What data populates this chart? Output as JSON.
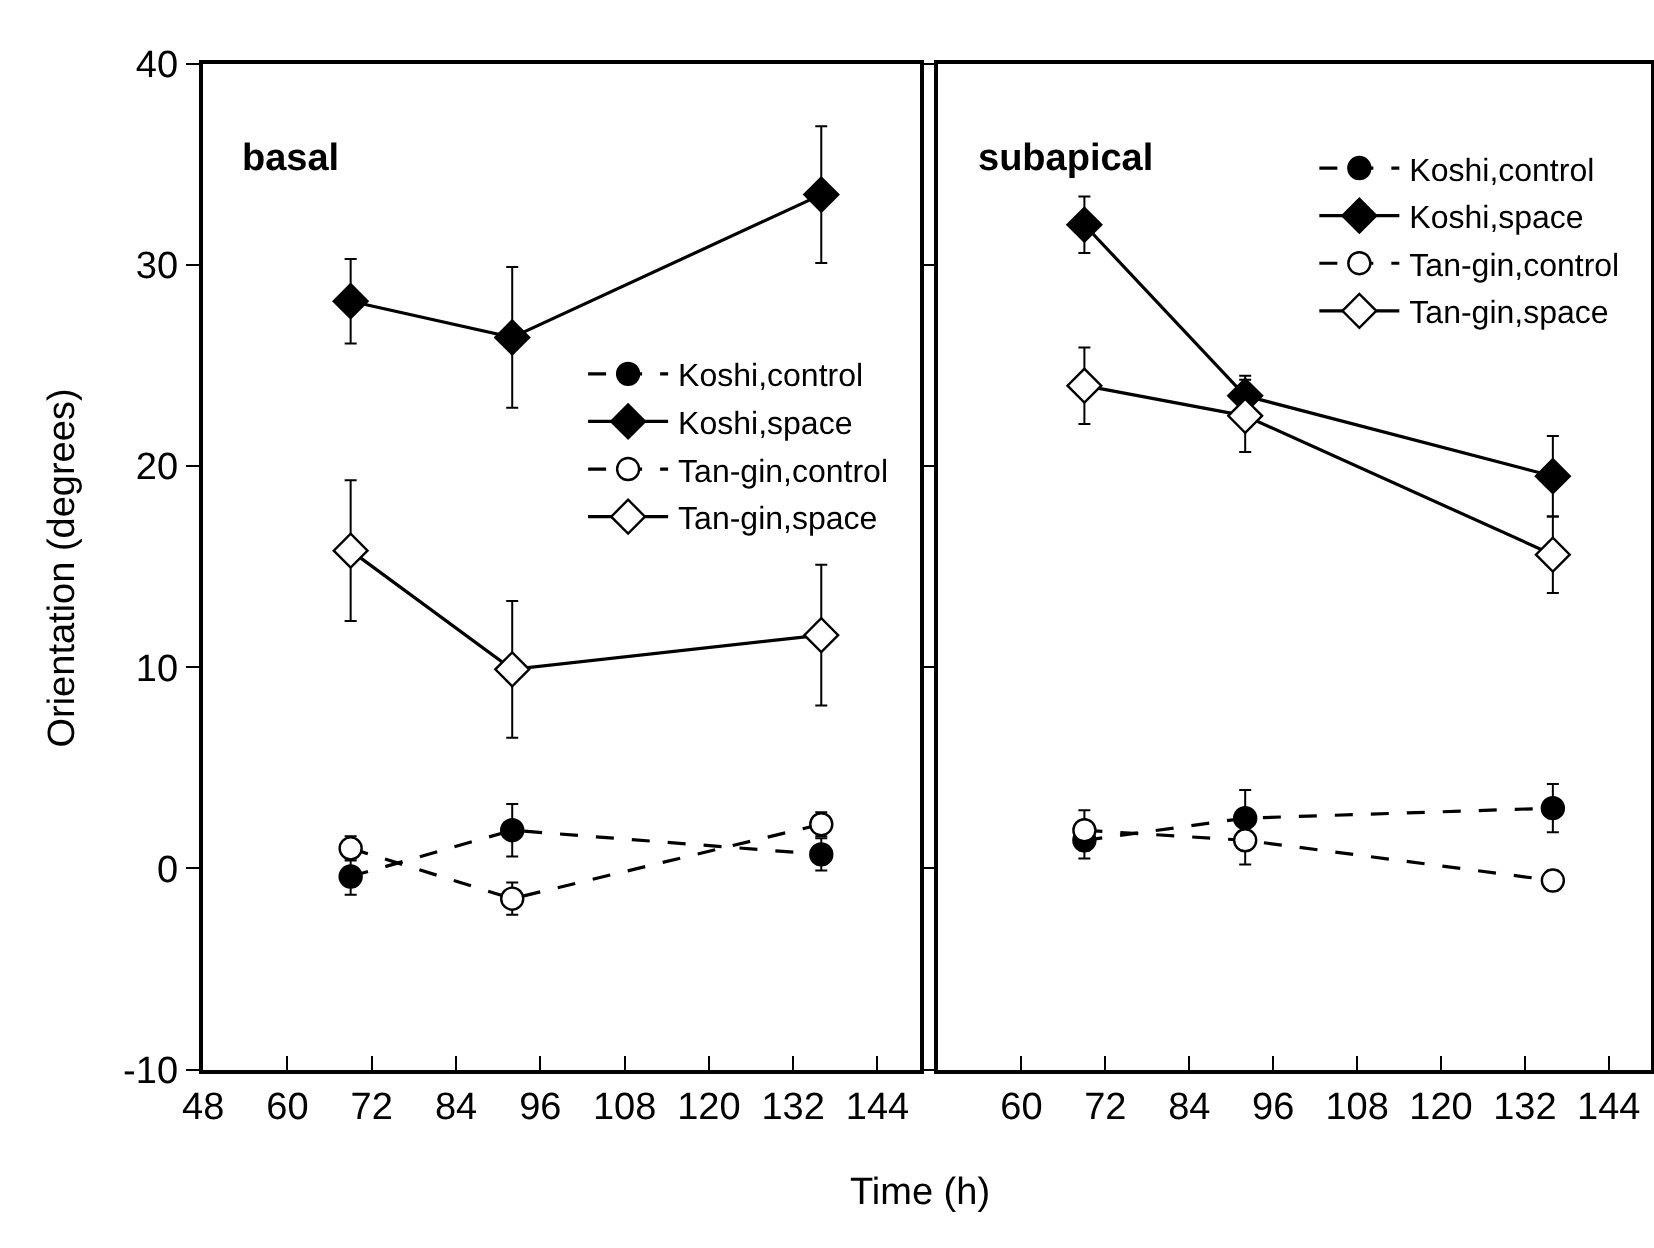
{
  "chart_data": [
    {
      "type": "line",
      "title": "basal",
      "xlabel": "Time (h)",
      "ylabel": "Orientation (degrees)",
      "x": [
        69,
        92,
        136
      ],
      "xlim": [
        48,
        150
      ],
      "xticks": [
        48,
        60,
        72,
        84,
        96,
        108,
        120,
        132,
        144
      ],
      "ylim": [
        -10,
        40
      ],
      "yticks": [
        -10,
        0,
        10,
        20,
        30,
        40
      ],
      "legend": "right",
      "series": [
        {
          "name": "Koshi,control",
          "color": "#000000",
          "marker": "circle",
          "line_style": "dashed",
          "values": [
            -0.4,
            1.9,
            0.7
          ],
          "errors": [
            0.9,
            1.3,
            0.8
          ]
        },
        {
          "name": "Koshi,space",
          "color": "#000000",
          "marker": "diamond",
          "line_style": "solid",
          "values": [
            28.2,
            26.4,
            33.5
          ],
          "errors": [
            2.1,
            3.5,
            3.4
          ]
        },
        {
          "name": "Tan-gin,control",
          "color": "#ffffff",
          "marker": "circle",
          "line_style": "dashed",
          "values": [
            1.0,
            -1.5,
            2.2
          ],
          "errors": [
            0.6,
            0.8,
            0.6
          ]
        },
        {
          "name": "Tan-gin,space",
          "color": "#ffffff",
          "marker": "diamond",
          "line_style": "solid",
          "values": [
            15.8,
            9.9,
            11.6
          ],
          "errors": [
            3.5,
            3.4,
            3.5
          ]
        }
      ]
    },
    {
      "type": "line",
      "title": "subapical",
      "x": [
        69,
        92,
        136
      ],
      "xlim": [
        48,
        150
      ],
      "xticks": [
        60,
        72,
        84,
        96,
        108,
        120,
        132,
        144
      ],
      "ylim": [
        -10,
        40
      ],
      "yticks": [
        -10,
        0,
        10,
        20,
        30,
        40
      ],
      "tick_labels": "x",
      "legend": "top right",
      "series": [
        {
          "name": "Koshi,control",
          "color": "#000000",
          "marker": "circle",
          "line_style": "dashed",
          "values": [
            1.4,
            2.5,
            3.0
          ],
          "errors": [
            0.9,
            1.4,
            1.2
          ]
        },
        {
          "name": "Koshi,space",
          "color": "#000000",
          "marker": "diamond",
          "line_style": "solid",
          "values": [
            32.0,
            23.5,
            19.5
          ],
          "errors": [
            1.4,
            1.0,
            2.0
          ]
        },
        {
          "name": "Tan-gin,control",
          "color": "#ffffff",
          "marker": "circle",
          "line_style": "dashed",
          "values": [
            1.9,
            1.4,
            -0.6
          ],
          "errors": [
            1.0,
            1.2,
            0.5
          ]
        },
        {
          "name": "Tan-gin,space",
          "color": "#ffffff",
          "marker": "diamond",
          "line_style": "solid",
          "values": [
            24.0,
            22.5,
            15.6
          ],
          "errors": [
            1.9,
            1.8,
            1.9
          ]
        }
      ]
    }
  ]
}
